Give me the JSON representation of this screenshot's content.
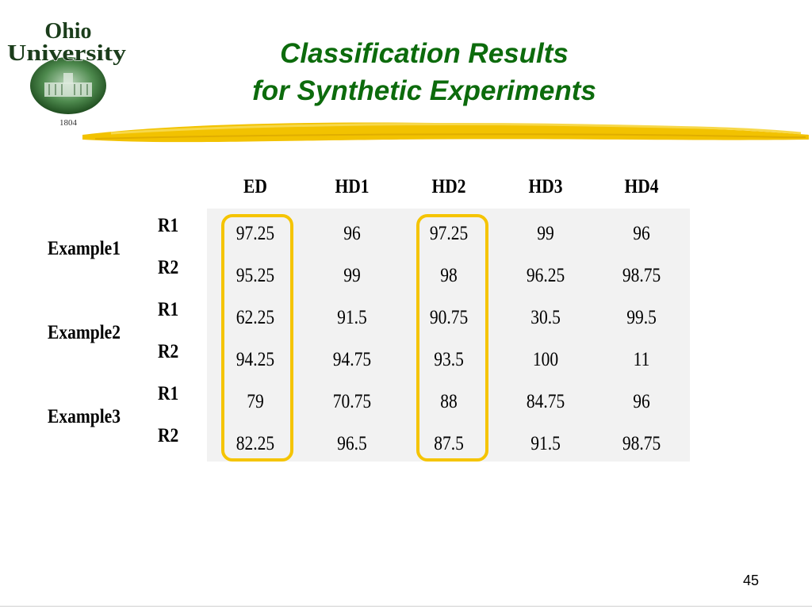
{
  "logo": {
    "line1": "Ohio",
    "line2": "University",
    "year": "1804"
  },
  "title": {
    "line1": "Classification Results",
    "line2": "for Synthetic Experiments"
  },
  "table": {
    "columns": [
      "ED",
      "HD1",
      "HD2",
      "HD3",
      "HD4"
    ],
    "groups": [
      {
        "label": "Example1",
        "rows": [
          {
            "label": "R1",
            "values": [
              "97.25",
              "96",
              "97.25",
              "99",
              "96"
            ]
          },
          {
            "label": "R2",
            "values": [
              "95.25",
              "99",
              "98",
              "96.25",
              "98.75"
            ]
          }
        ]
      },
      {
        "label": "Example2",
        "rows": [
          {
            "label": "R1",
            "values": [
              "62.25",
              "91.5",
              "90.75",
              "30.5",
              "99.5"
            ]
          },
          {
            "label": "R2",
            "values": [
              "94.25",
              "94.75",
              "93.5",
              "100",
              "11"
            ]
          }
        ]
      },
      {
        "label": "Example3",
        "rows": [
          {
            "label": "R1",
            "values": [
              "79",
              "70.75",
              "88",
              "84.75",
              "96"
            ]
          },
          {
            "label": "R2",
            "values": [
              "82.25",
              "96.5",
              "87.5",
              "91.5",
              "98.75"
            ]
          }
        ]
      }
    ],
    "highlighted_columns": [
      "ED",
      "HD2"
    ],
    "highlight_color": "#f5c400",
    "cell_background": "#f2f2f2"
  },
  "colors": {
    "title": "#0c6b0c",
    "brush_stroke": "#f2c200"
  },
  "page_number": "45"
}
